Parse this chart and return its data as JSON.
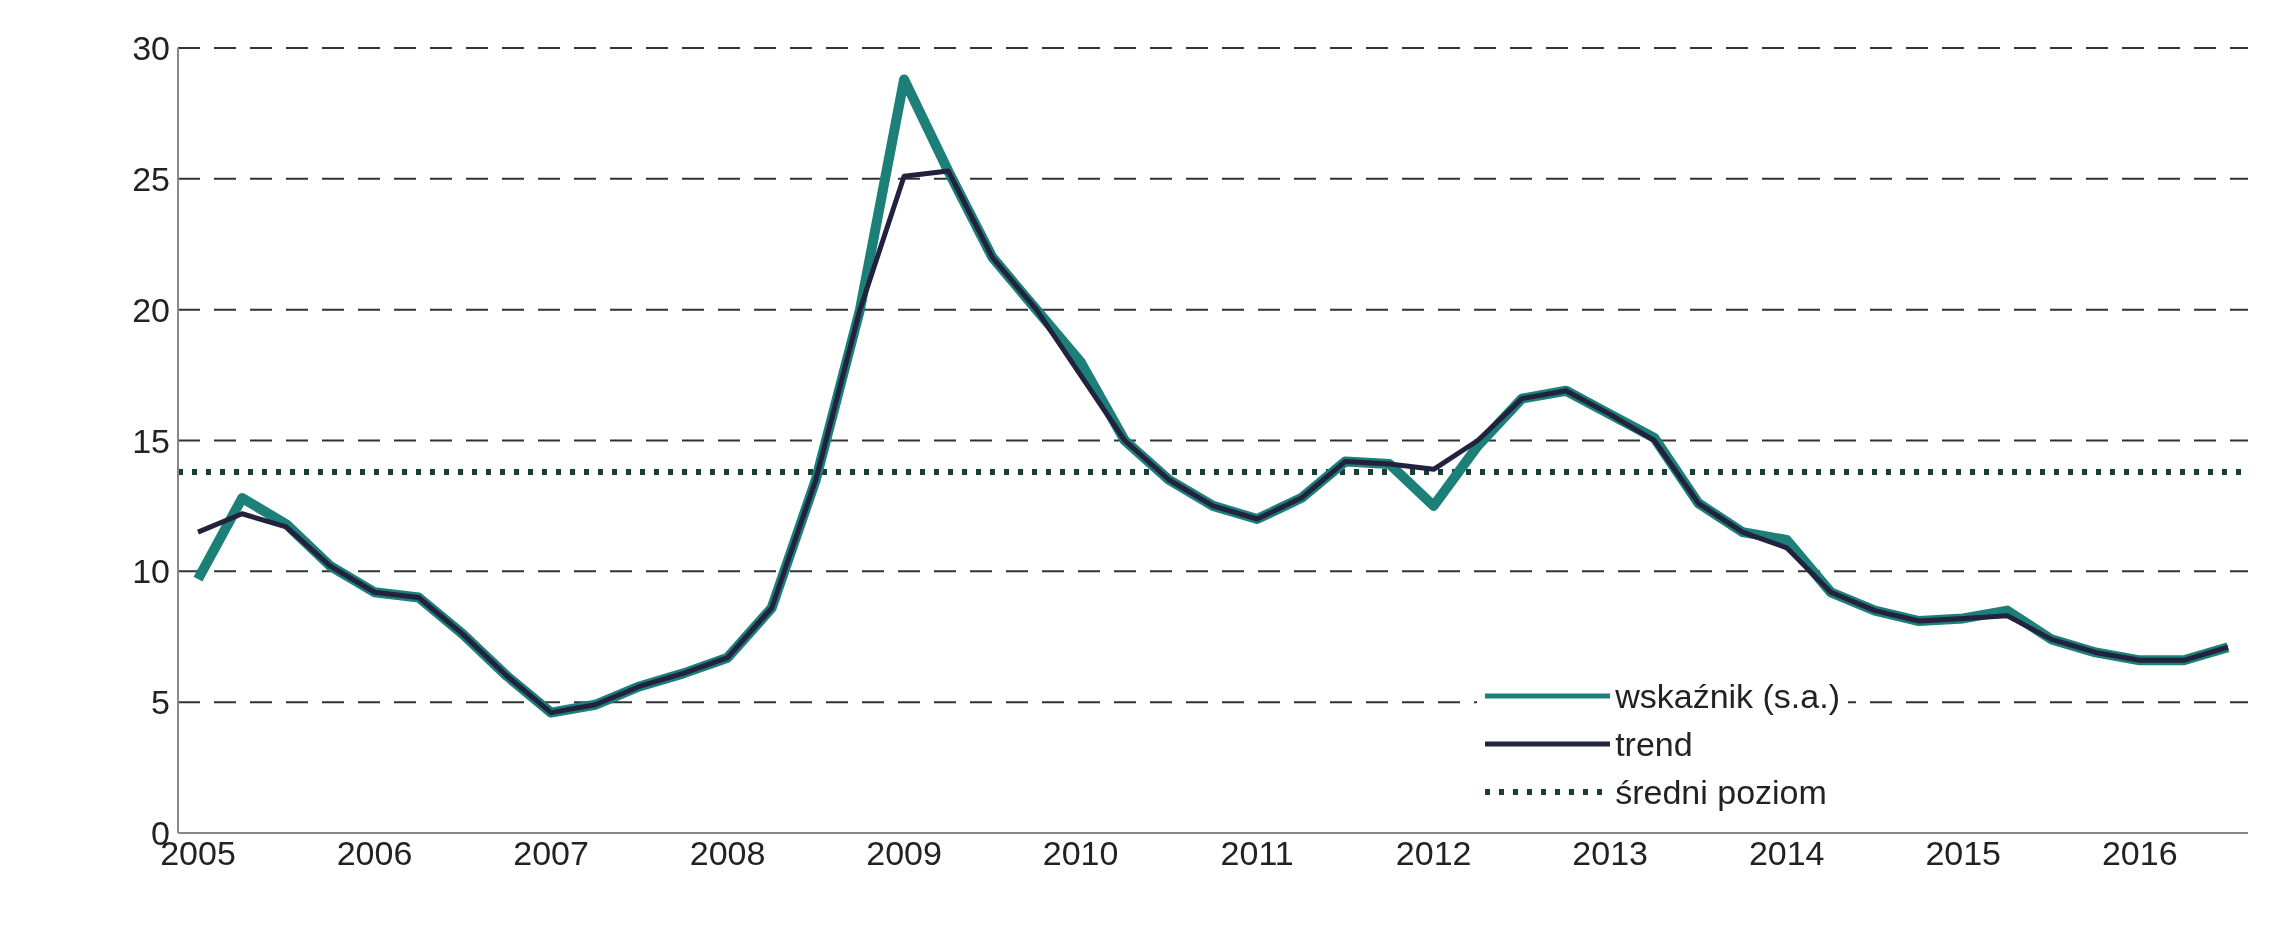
{
  "chart_data": {
    "type": "line",
    "categories": [
      "2005",
      null,
      null,
      null,
      "2006",
      null,
      null,
      null,
      "2007",
      null,
      null,
      null,
      "2008",
      null,
      null,
      null,
      "2009",
      null,
      null,
      null,
      "2010",
      null,
      null,
      null,
      "2011",
      null,
      null,
      null,
      "2012",
      null,
      null,
      null,
      "2013",
      null,
      null,
      null,
      "2014",
      null,
      null,
      null,
      "2015",
      null,
      null,
      null,
      "2016",
      null,
      null
    ],
    "series": [
      {
        "name": "wskaźnik (s.a.)",
        "color": "#1d8078",
        "values": [
          9.7,
          12.8,
          11.8,
          10.2,
          9.2,
          9.0,
          7.6,
          6.0,
          4.6,
          4.9,
          5.6,
          6.1,
          6.7,
          8.6,
          13.5,
          20.0,
          28.8,
          25.3,
          22.0,
          20.0,
          18.0,
          15.0,
          13.5,
          12.5,
          12.0,
          12.8,
          14.2,
          14.1,
          12.5,
          14.8,
          16.6,
          16.9,
          16.0,
          15.1,
          12.6,
          11.5,
          11.2,
          9.2,
          8.5,
          8.1,
          8.2,
          8.5,
          7.4,
          6.9,
          6.6,
          6.6,
          7.1
        ]
      },
      {
        "name": "trend",
        "color": "#22223e",
        "values": [
          11.5,
          12.2,
          11.7,
          10.2,
          9.2,
          9.0,
          7.6,
          6.0,
          4.6,
          4.9,
          5.6,
          6.1,
          6.7,
          8.6,
          13.5,
          20.0,
          25.1,
          25.3,
          22.0,
          20.0,
          17.5,
          15.0,
          13.5,
          12.5,
          12.0,
          12.8,
          14.2,
          14.1,
          13.9,
          15.0,
          16.6,
          16.9,
          16.0,
          15.0,
          12.6,
          11.5,
          10.9,
          9.2,
          8.5,
          8.1,
          8.2,
          8.3,
          7.4,
          6.9,
          6.6,
          6.6,
          7.1
        ]
      }
    ],
    "ylim": [
      0,
      30
    ],
    "yticks": [
      0,
      5,
      10,
      15,
      20,
      25,
      30
    ],
    "grid": "y",
    "ref_lines": [
      {
        "axis": "y",
        "value": 13.8,
        "label": "średni poziom",
        "color": "#1b3d38",
        "line_style": "dotted"
      }
    ],
    "legend": "bottom right",
    "line_style": "solid",
    "marker": "none"
  }
}
